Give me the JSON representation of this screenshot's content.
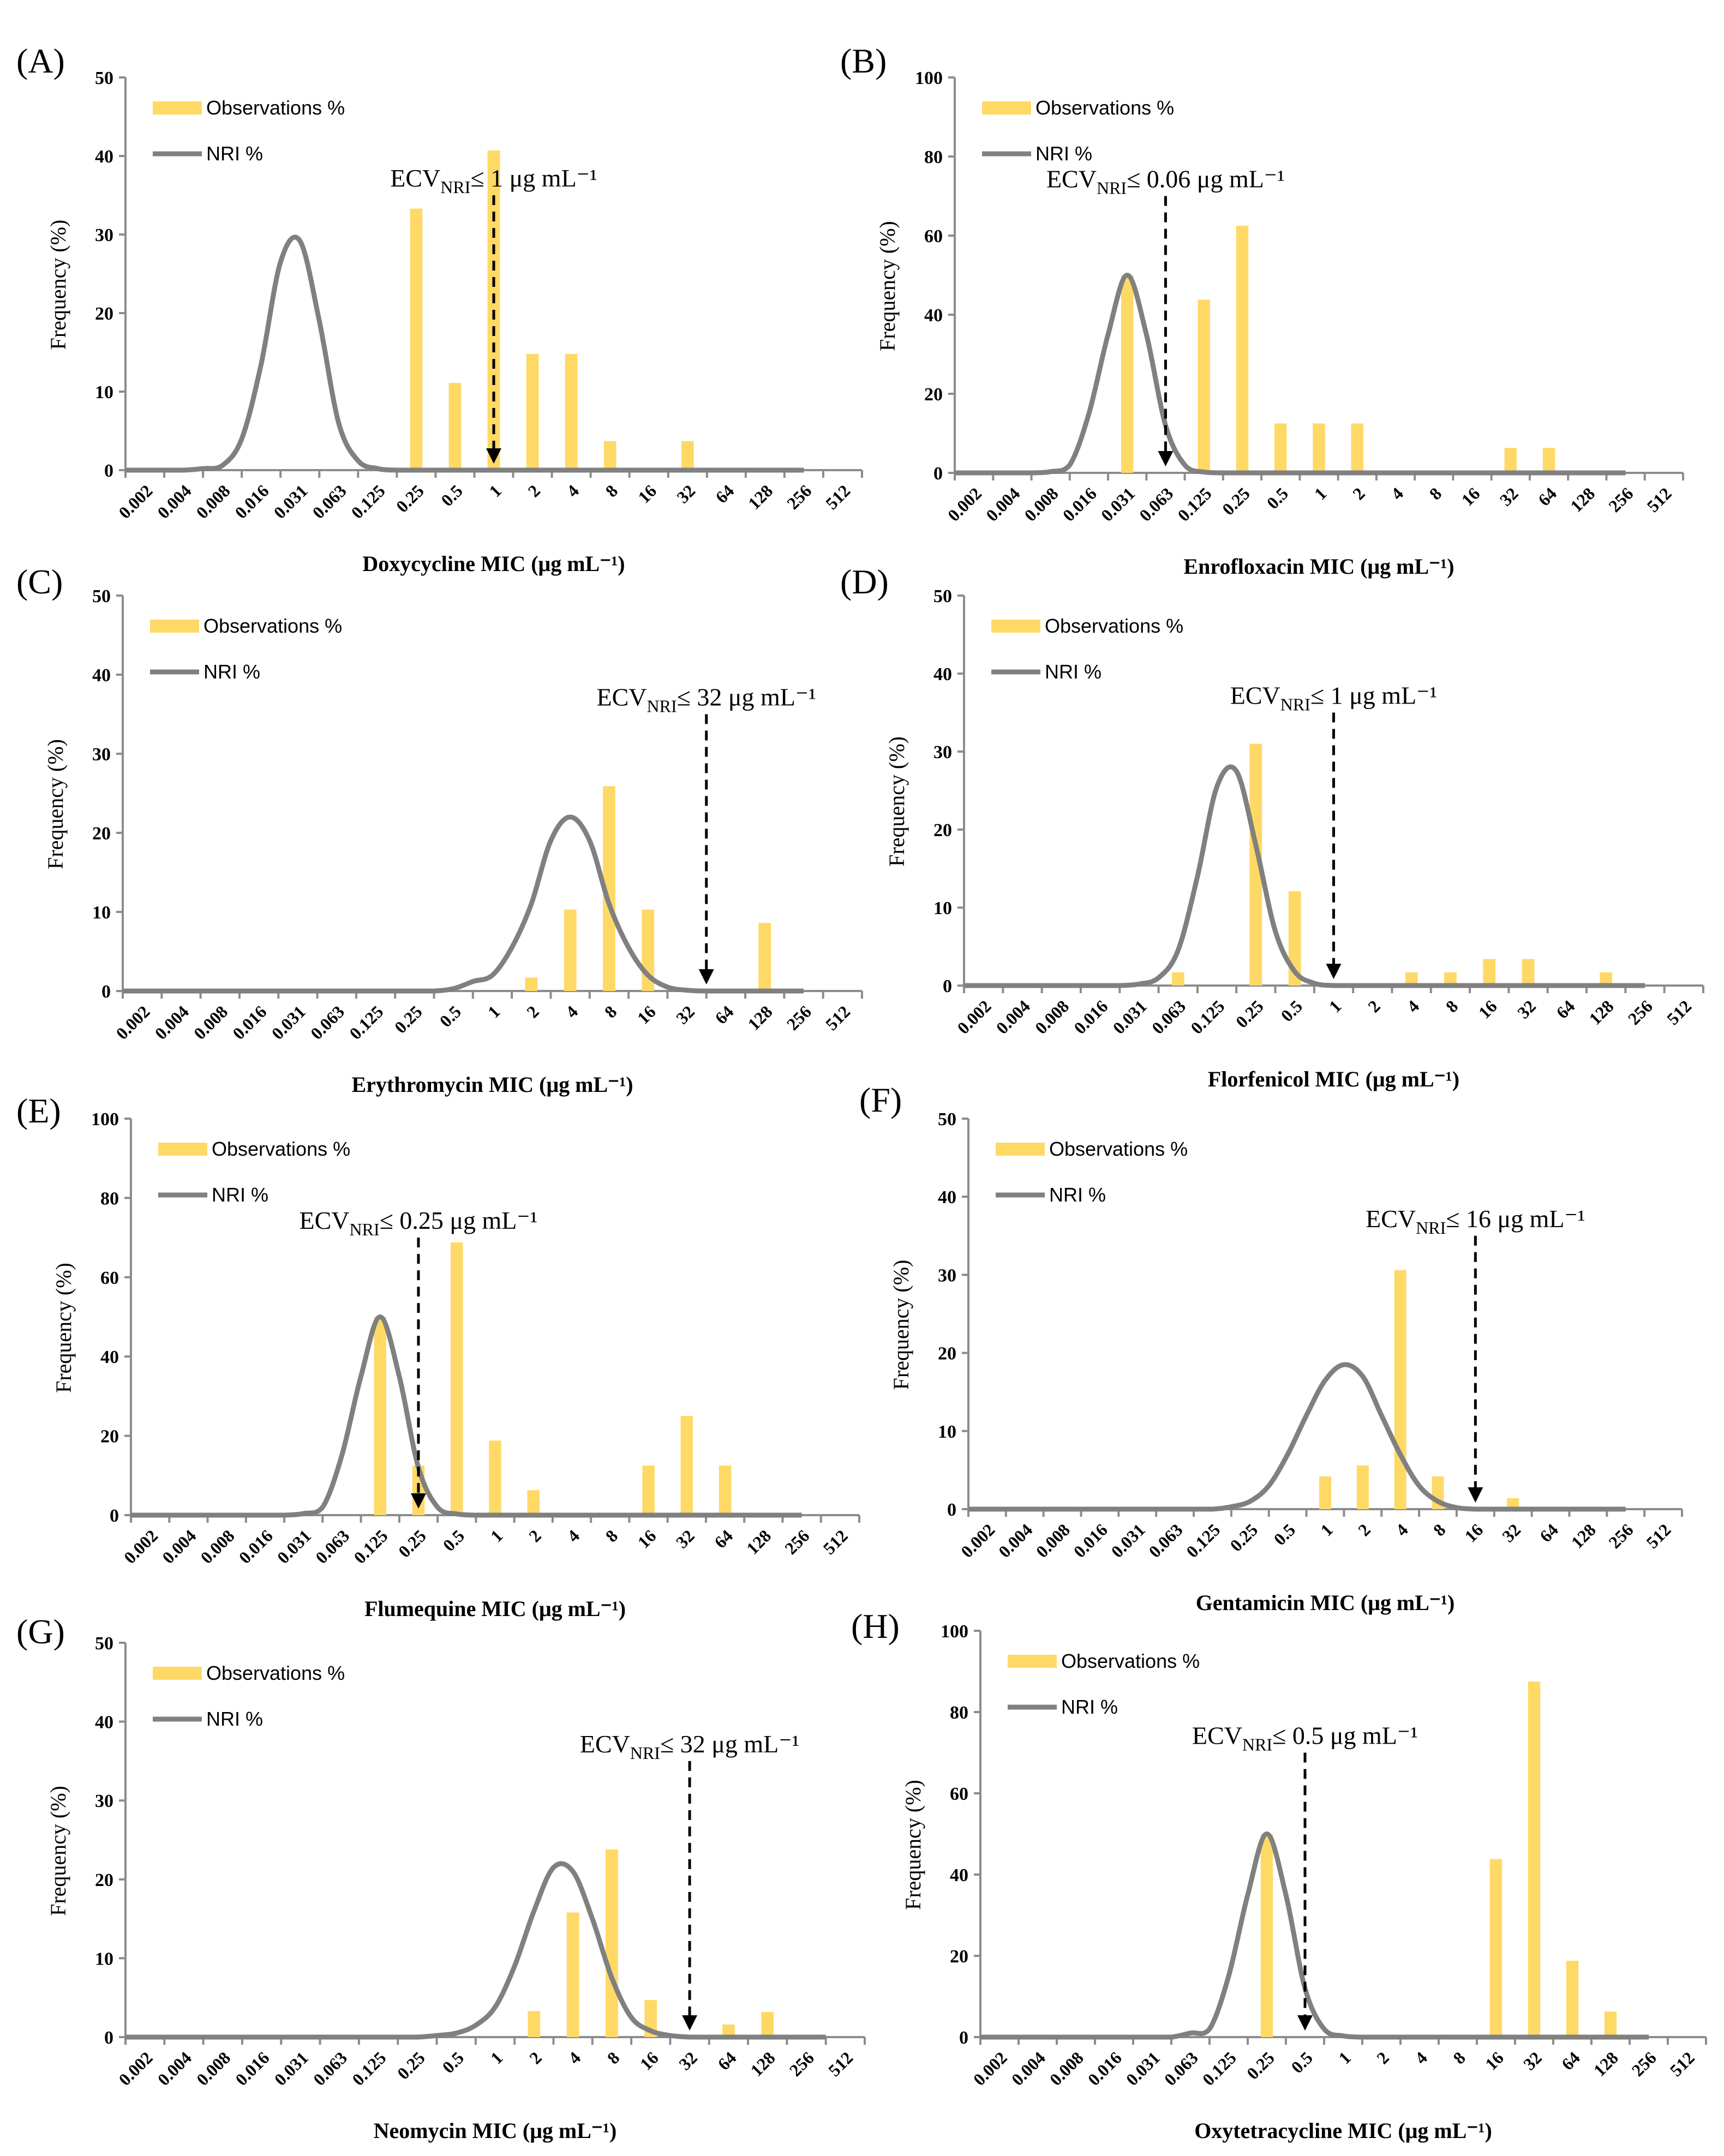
{
  "figure": {
    "colors": {
      "bar": "#FFD966",
      "line": "#808080",
      "axis": "#8C8C8C",
      "text": "#000000"
    },
    "categories": [
      "0.002",
      "0.004",
      "0.008",
      "0.016",
      "0.031",
      "0.063",
      "0.125",
      "0.25",
      "0.5",
      "1",
      "2",
      "4",
      "8",
      "16",
      "32",
      "64",
      "128",
      "256",
      "512"
    ],
    "legend": {
      "obs": "Observations %",
      "nri": "NRI %"
    },
    "ecv_prefix": "ECV",
    "ecv_sub": "NRI",
    "ecv_leq": "≤",
    "ylabel": "Frequency (%)"
  },
  "chart_data": [
    {
      "label": "(A)",
      "type": "bar+line",
      "drug": "Doxycycline",
      "xlabel": "Doxycycline MIC (μg mL⁻¹)",
      "ylim": [
        0,
        50
      ],
      "yticks": [
        0,
        10,
        20,
        30,
        40,
        50
      ],
      "observations": [
        0,
        0,
        0,
        0,
        0,
        0,
        0,
        33.3,
        11.1,
        40.7,
        14.8,
        14.8,
        3.7,
        0,
        3.7,
        0,
        0,
        0,
        0
      ],
      "nri": [
        0,
        0,
        0,
        0,
        0,
        0.2,
        0.6,
        4,
        13.5,
        26.5,
        29.2,
        19,
        6,
        1.2,
        0.2,
        0,
        0,
        0,
        0,
        0,
        0,
        0,
        0,
        0,
        0,
        0,
        0,
        0,
        0,
        0,
        0,
        0,
        0,
        0,
        0,
        0,
        0
      ],
      "ecv": {
        "value": "1",
        "unit": "μg mL⁻¹",
        "at": 9
      }
    },
    {
      "label": "(B)",
      "type": "bar+line",
      "drug": "Enrofloxacin",
      "xlabel": "Enrofloxacin MIC (μg mL⁻¹)",
      "ylim": [
        0,
        100
      ],
      "yticks": [
        0,
        20,
        40,
        60,
        80,
        100
      ],
      "observations": [
        0,
        0,
        0,
        0,
        50,
        0,
        43.8,
        62.5,
        12.5,
        12.5,
        12.5,
        0,
        0,
        0,
        6.3,
        6.3,
        0,
        0,
        0
      ],
      "nri": [
        0,
        0,
        0,
        0,
        0,
        0,
        0.3,
        2,
        15,
        35,
        50,
        35,
        12,
        2,
        0.2,
        0,
        0,
        0,
        0,
        0,
        0,
        0,
        0,
        0,
        0,
        0,
        0,
        0,
        0,
        0,
        0,
        0,
        0,
        0,
        0,
        0,
        0
      ],
      "ecv": {
        "value": "0.06",
        "unit": "μg mL⁻¹",
        "at": 5
      }
    },
    {
      "label": "(C)",
      "type": "bar+line",
      "drug": "Erythromycin",
      "xlabel": "Erythromycin MIC (μg mL⁻¹)",
      "ylim": [
        0,
        50
      ],
      "yticks": [
        0,
        10,
        20,
        30,
        40,
        50
      ],
      "observations": [
        0,
        0,
        0,
        0,
        0,
        0,
        0,
        0,
        0,
        0,
        1.7,
        10.3,
        25.9,
        10.3,
        0,
        0,
        8.6,
        0,
        0
      ],
      "nri": [
        0,
        0,
        0,
        0,
        0,
        0,
        0,
        0,
        0,
        0,
        0,
        0,
        0,
        0,
        0,
        0,
        0,
        0,
        0.3,
        1.2,
        2,
        5.5,
        11,
        19,
        22,
        19,
        11,
        5.5,
        2,
        0.5,
        0.1,
        0,
        0,
        0,
        0,
        0,
        0
      ],
      "ecv": {
        "value": "32",
        "unit": "μg mL⁻¹",
        "at": 14.5
      }
    },
    {
      "label": "(D)",
      "type": "bar+line",
      "drug": "Florfenicol",
      "xlabel": "Florfenicol MIC (μg mL⁻¹)",
      "ylim": [
        0,
        50
      ],
      "yticks": [
        0,
        10,
        20,
        30,
        40,
        50
      ],
      "observations": [
        0,
        0,
        0,
        0,
        0,
        1.7,
        0,
        31,
        12.1,
        0,
        0,
        1.7,
        1.7,
        3.4,
        3.4,
        0,
        1.7,
        0,
        0
      ],
      "nri": [
        0,
        0,
        0,
        0,
        0,
        0,
        0,
        0,
        0,
        0,
        0.2,
        1,
        4.5,
        14,
        25.5,
        27.5,
        18,
        7,
        1.8,
        0.3,
        0,
        0,
        0,
        0,
        0,
        0,
        0,
        0,
        0,
        0,
        0,
        0,
        0,
        0,
        0,
        0,
        0
      ],
      "ecv": {
        "value": "1",
        "unit": "μg mL⁻¹",
        "at": 9
      }
    },
    {
      "label": "(E)",
      "type": "bar+line",
      "drug": "Flumequine",
      "xlabel": "Flumequine MIC (μg mL⁻¹)",
      "ylim": [
        0,
        100
      ],
      "yticks": [
        0,
        20,
        40,
        60,
        80,
        100
      ],
      "observations": [
        0,
        0,
        0,
        0,
        0,
        0,
        50,
        12.5,
        68.8,
        18.8,
        6.3,
        0,
        0,
        12.5,
        25,
        12.5,
        0,
        0,
        0
      ],
      "nri": [
        0,
        0,
        0,
        0,
        0,
        0,
        0,
        0,
        0,
        0,
        0.4,
        2,
        15,
        35,
        50,
        35,
        12,
        2,
        0.3,
        0,
        0,
        0,
        0,
        0,
        0,
        0,
        0,
        0,
        0,
        0,
        0,
        0,
        0,
        0,
        0,
        0,
        0
      ],
      "ecv": {
        "value": "0.25",
        "unit": "μg mL⁻¹",
        "at": 7
      }
    },
    {
      "label": "(F)",
      "type": "bar+line",
      "drug": "Gentamicin",
      "xlabel": "Gentamicin MIC (μg mL⁻¹)",
      "ylim": [
        0,
        50
      ],
      "yticks": [
        0,
        10,
        20,
        30,
        40,
        50
      ],
      "observations": [
        0,
        0,
        0,
        0,
        0,
        0,
        0,
        0,
        0,
        4.2,
        5.6,
        30.6,
        4.2,
        0,
        1.4,
        0,
        0,
        0,
        0
      ],
      "nri": [
        0,
        0,
        0,
        0,
        0,
        0,
        0,
        0,
        0,
        0,
        0,
        0,
        0,
        0,
        0,
        0.3,
        1,
        3,
        7,
        12,
        16.5,
        18.5,
        17,
        12,
        7,
        3,
        1,
        0.2,
        0,
        0,
        0,
        0,
        0,
        0,
        0,
        0,
        0
      ],
      "ecv": {
        "value": "16",
        "unit": "μg mL⁻¹",
        "at": 13
      }
    },
    {
      "label": "(G)",
      "type": "bar+line",
      "drug": "Neomycin",
      "xlabel": "Neomycin MIC (μg mL⁻¹)",
      "ylim": [
        0,
        50
      ],
      "yticks": [
        0,
        10,
        20,
        30,
        40,
        50
      ],
      "observations": [
        0,
        0,
        0,
        0,
        0,
        0,
        0,
        0,
        0,
        0,
        3.3,
        15.8,
        23.8,
        4.7,
        0,
        1.6,
        3.2,
        0,
        0
      ],
      "nri": [
        0,
        0,
        0,
        0,
        0,
        0,
        0,
        0,
        0,
        0,
        0,
        0,
        0,
        0,
        0,
        0,
        0,
        0.2,
        0.5,
        1.5,
        3.8,
        9,
        16,
        21.5,
        21,
        15,
        7.5,
        2.5,
        0.8,
        0.2,
        0,
        0,
        0,
        0,
        0,
        0,
        0,
        0
      ],
      "ecv": {
        "value": "32",
        "unit": "μg mL⁻¹",
        "at": 14
      }
    },
    {
      "label": "(H)",
      "type": "bar+line",
      "drug": "Oxytetracycline",
      "xlabel": "Oxytetracycline MIC (μg mL⁻¹)",
      "ylim": [
        0,
        100
      ],
      "yticks": [
        0,
        20,
        40,
        60,
        80,
        100
      ],
      "observations": [
        0,
        0,
        0,
        0,
        0,
        0,
        0,
        50,
        0,
        0,
        0,
        0,
        0,
        43.8,
        87.5,
        18.8,
        6.3,
        0,
        0
      ],
      "nri": [
        0,
        0,
        0,
        0,
        0,
        0,
        0,
        0,
        0,
        0,
        0,
        0,
        1,
        2,
        15,
        35,
        50,
        35,
        12,
        2,
        0.3,
        0,
        0,
        0,
        0,
        0,
        0,
        0,
        0,
        0,
        0,
        0,
        0,
        0,
        0,
        0,
        0
      ],
      "ecv": {
        "value": "0.5",
        "unit": "μg mL⁻¹",
        "at": 8
      }
    }
  ]
}
